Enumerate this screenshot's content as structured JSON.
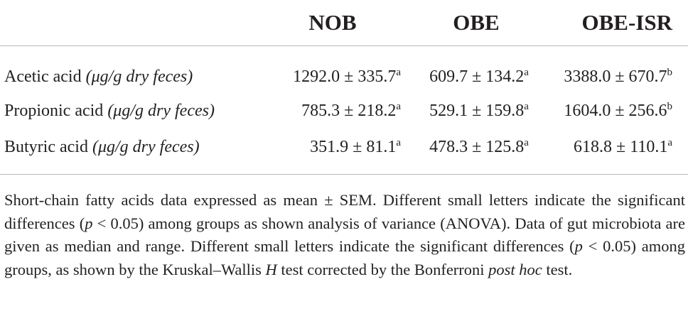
{
  "table": {
    "columns": [
      "",
      "NOB",
      "OBE",
      "OBE-ISR"
    ],
    "rows": [
      {
        "label": "Acetic acid",
        "unit": "(μg/g dry feces)",
        "values": [
          {
            "value": "1292.0 ± 335.7",
            "sup": "a"
          },
          {
            "value": "609.7 ± 134.2",
            "sup": "a"
          },
          {
            "value": "3388.0 ± 670.7",
            "sup": "b"
          }
        ]
      },
      {
        "label": "Propionic acid",
        "unit": "(μg/g dry feces)",
        "values": [
          {
            "value": "785.3 ± 218.2",
            "sup": "a"
          },
          {
            "value": "529.1 ± 159.8",
            "sup": "a"
          },
          {
            "value": "1604.0 ± 256.6",
            "sup": "b"
          }
        ]
      },
      {
        "label": "Butyric acid",
        "unit": "(μg/g dry feces)",
        "values": [
          {
            "value": "351.9 ± 81.1",
            "sup": "a"
          },
          {
            "value": "478.3 ± 125.8",
            "sup": "a"
          },
          {
            "value": "618.8 ± 110.1",
            "sup": "a"
          }
        ]
      }
    ]
  },
  "footnote": {
    "s1": "Short-chain fatty acids data expressed as mean ± SEM. Different small letters indicate the significant differences (",
    "p1": "p",
    "s2": " < 0.05) among groups as shown analysis of variance (ANOVA). Data of gut microbiota are given as median and range. Different small letters indicate the significant differences (",
    "p2": "p",
    "s3": " < 0.05) among groups, as shown by the Kruskal–Wallis ",
    "h": "H",
    "s4": " test corrected by the Bonferroni ",
    "posthoc": "post hoc",
    "s5": " test."
  }
}
